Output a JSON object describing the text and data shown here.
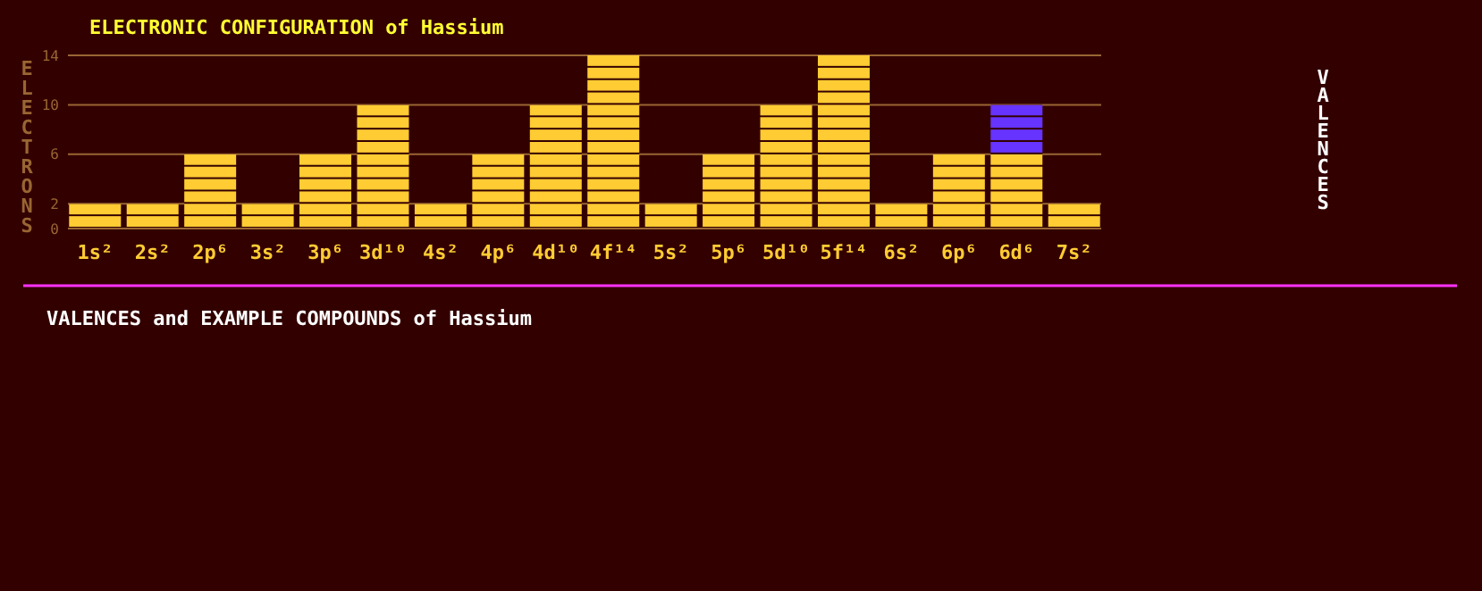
{
  "chart_data": {
    "type": "bar",
    "title": "ELECTRONIC CONFIGURATION of Hassium",
    "ylabel": "ELECTRONS",
    "categories": [
      "1s²",
      "2s²",
      "2p⁶",
      "3s²",
      "3p⁶",
      "3d¹⁰",
      "4s²",
      "4p⁶",
      "4d¹⁰",
      "4f¹⁴",
      "5s²",
      "5p⁶",
      "5d¹⁰",
      "5f¹⁴",
      "6s²",
      "6p⁶",
      "6d⁶",
      "7s²"
    ],
    "stacked": true,
    "series": [
      {
        "color": "#ffcc33",
        "values": [
          2,
          2,
          6,
          2,
          6,
          10,
          2,
          6,
          10,
          14,
          2,
          6,
          10,
          14,
          2,
          6,
          6,
          2
        ]
      },
      {
        "color": "#6633ff",
        "values": [
          null,
          null,
          null,
          null,
          null,
          null,
          null,
          null,
          null,
          null,
          null,
          null,
          null,
          null,
          null,
          null,
          4,
          null
        ]
      }
    ],
    "ylim": [
      0,
      14
    ],
    "yticks": [
      0,
      2,
      6,
      10,
      14
    ],
    "grid": "y",
    "annotations": [
      "VALENCES",
      "VALENCES and EXAMPLE COMPOUNDS of Hassium"
    ]
  }
}
